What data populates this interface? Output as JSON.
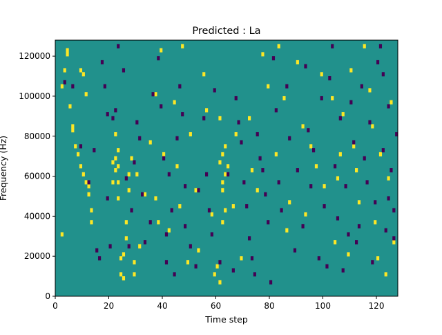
{
  "chart_data": {
    "type": "heatmap",
    "title": "Predicted : La",
    "xlabel": "Time step",
    "ylabel": "Frequency (Hz)",
    "xlim": [
      0,
      128
    ],
    "ylim": [
      0,
      128000
    ],
    "x_ticks": [
      0,
      20,
      40,
      60,
      80,
      100,
      120
    ],
    "y_ticks": [
      0,
      20000,
      40000,
      60000,
      80000,
      100000,
      120000
    ],
    "x_tick_labels": [
      "0",
      "20",
      "40",
      "60",
      "80",
      "100",
      "120"
    ],
    "y_tick_labels": [
      "0",
      "20000",
      "40000",
      "60000",
      "80000",
      "100000",
      "120000"
    ],
    "grid": false,
    "colors": {
      "background": "#21918c",
      "high": "#fde725",
      "low": "#440154"
    },
    "rows": 64,
    "bin_hz": 2000,
    "high_cells": [
      [
        2,
        15
      ],
      [
        2,
        52
      ],
      [
        3,
        56
      ],
      [
        4,
        60
      ],
      [
        4,
        61
      ],
      [
        5,
        47
      ],
      [
        6,
        42
      ],
      [
        6,
        41
      ],
      [
        7,
        37
      ],
      [
        8,
        35
      ],
      [
        9,
        32
      ],
      [
        9,
        56
      ],
      [
        10,
        30
      ],
      [
        10,
        55
      ],
      [
        11,
        28
      ],
      [
        11,
        50
      ],
      [
        12,
        27
      ],
      [
        12,
        25
      ],
      [
        13,
        21
      ],
      [
        13,
        18
      ],
      [
        24,
        5
      ],
      [
        24,
        9
      ],
      [
        25,
        4
      ],
      [
        25,
        10
      ],
      [
        26,
        14
      ],
      [
        26,
        18
      ],
      [
        27,
        26
      ],
      [
        27,
        30
      ],
      [
        28,
        34
      ],
      [
        29,
        5
      ],
      [
        29,
        8
      ],
      [
        23,
        24
      ],
      [
        23,
        28
      ],
      [
        23,
        32
      ],
      [
        23,
        36
      ],
      [
        22,
        31
      ],
      [
        22,
        34
      ],
      [
        21,
        33
      ],
      [
        21,
        28
      ],
      [
        22,
        40
      ],
      [
        30,
        30
      ],
      [
        31,
        12
      ],
      [
        33,
        25
      ],
      [
        35,
        38
      ],
      [
        37,
        24
      ],
      [
        37,
        50
      ],
      [
        38,
        18
      ],
      [
        39,
        61
      ],
      [
        40,
        35
      ],
      [
        42,
        16
      ],
      [
        44,
        48
      ],
      [
        45,
        32
      ],
      [
        46,
        22
      ],
      [
        47,
        62
      ],
      [
        49,
        8
      ],
      [
        50,
        40
      ],
      [
        52,
        26
      ],
      [
        53,
        11
      ],
      [
        55,
        55
      ],
      [
        56,
        46
      ],
      [
        58,
        20
      ],
      [
        59,
        5
      ],
      [
        60,
        7
      ],
      [
        61,
        3
      ],
      [
        61,
        33
      ],
      [
        62,
        18
      ],
      [
        63,
        21
      ],
      [
        62,
        26
      ],
      [
        63,
        30
      ],
      [
        62,
        35
      ],
      [
        63,
        37
      ],
      [
        61,
        44
      ],
      [
        62,
        28
      ],
      [
        64,
        32
      ],
      [
        66,
        22
      ],
      [
        67,
        40
      ],
      [
        69,
        9
      ],
      [
        72,
        44
      ],
      [
        73,
        31
      ],
      [
        75,
        26
      ],
      [
        77,
        60
      ],
      [
        79,
        52
      ],
      [
        82,
        35
      ],
      [
        83,
        62
      ],
      [
        85,
        49
      ],
      [
        86,
        16
      ],
      [
        87,
        23
      ],
      [
        90,
        58
      ],
      [
        92,
        42
      ],
      [
        93,
        20
      ],
      [
        95,
        37
      ],
      [
        97,
        32
      ],
      [
        99,
        55
      ],
      [
        100,
        27
      ],
      [
        103,
        49
      ],
      [
        104,
        13
      ],
      [
        105,
        29
      ],
      [
        106,
        35
      ],
      [
        107,
        45
      ],
      [
        109,
        10
      ],
      [
        110,
        56
      ],
      [
        111,
        37
      ],
      [
        112,
        31
      ],
      [
        113,
        23
      ],
      [
        115,
        62
      ],
      [
        117,
        51
      ],
      [
        118,
        42
      ],
      [
        119,
        18
      ],
      [
        120,
        9
      ],
      [
        121,
        35
      ],
      [
        123,
        5
      ],
      [
        124,
        29
      ],
      [
        125,
        48
      ],
      [
        126,
        13
      ]
    ],
    "low_cells": [
      [
        3,
        53
      ],
      [
        6,
        52
      ],
      [
        9,
        37
      ],
      [
        12,
        28
      ],
      [
        14,
        36
      ],
      [
        15,
        11
      ],
      [
        16,
        9
      ],
      [
        17,
        58
      ],
      [
        18,
        52
      ],
      [
        19,
        45
      ],
      [
        19,
        24
      ],
      [
        20,
        12
      ],
      [
        21,
        44
      ],
      [
        22,
        46
      ],
      [
        23,
        62
      ],
      [
        25,
        56
      ],
      [
        26,
        29
      ],
      [
        27,
        12
      ],
      [
        28,
        21
      ],
      [
        29,
        33
      ],
      [
        30,
        43
      ],
      [
        31,
        39
      ],
      [
        32,
        25
      ],
      [
        33,
        13
      ],
      [
        35,
        18
      ],
      [
        36,
        50
      ],
      [
        38,
        59
      ],
      [
        39,
        47
      ],
      [
        40,
        34
      ],
      [
        41,
        15
      ],
      [
        41,
        8
      ],
      [
        42,
        30
      ],
      [
        43,
        21
      ],
      [
        44,
        5
      ],
      [
        45,
        39
      ],
      [
        46,
        52
      ],
      [
        47,
        45
      ],
      [
        48,
        17
      ],
      [
        48,
        27
      ],
      [
        50,
        12
      ],
      [
        52,
        7
      ],
      [
        53,
        26
      ],
      [
        55,
        44
      ],
      [
        56,
        30
      ],
      [
        57,
        21
      ],
      [
        58,
        15
      ],
      [
        59,
        51
      ],
      [
        61,
        8
      ],
      [
        64,
        30
      ],
      [
        66,
        6
      ],
      [
        67,
        49
      ],
      [
        68,
        43
      ],
      [
        69,
        38
      ],
      [
        70,
        28
      ],
      [
        71,
        22
      ],
      [
        72,
        14
      ],
      [
        73,
        9
      ],
      [
        74,
        5
      ],
      [
        75,
        40
      ],
      [
        76,
        34
      ],
      [
        77,
        31
      ],
      [
        78,
        25
      ],
      [
        79,
        18
      ],
      [
        80,
        3
      ],
      [
        81,
        59
      ],
      [
        82,
        46
      ],
      [
        83,
        28
      ],
      [
        84,
        21
      ],
      [
        86,
        52
      ],
      [
        87,
        39
      ],
      [
        89,
        11
      ],
      [
        90,
        31
      ],
      [
        92,
        17
      ],
      [
        93,
        57
      ],
      [
        94,
        41
      ],
      [
        95,
        27
      ],
      [
        96,
        36
      ],
      [
        98,
        9
      ],
      [
        99,
        49
      ],
      [
        100,
        22
      ],
      [
        101,
        7
      ],
      [
        102,
        54
      ],
      [
        103,
        62
      ],
      [
        104,
        32
      ],
      [
        105,
        19
      ],
      [
        106,
        44
      ],
      [
        107,
        6
      ],
      [
        108,
        27
      ],
      [
        109,
        15
      ],
      [
        110,
        48
      ],
      [
        111,
        38
      ],
      [
        112,
        13
      ],
      [
        114,
        52
      ],
      [
        116,
        28
      ],
      [
        117,
        43
      ],
      [
        118,
        8
      ],
      [
        119,
        23
      ],
      [
        120,
        58
      ],
      [
        122,
        36
      ],
      [
        123,
        16
      ],
      [
        124,
        47
      ],
      [
        125,
        31
      ],
      [
        126,
        21
      ],
      [
        127,
        40
      ],
      [
        126,
        14
      ],
      [
        124,
        24
      ],
      [
        122,
        55
      ],
      [
        121,
        62
      ],
      [
        115,
        34
      ],
      [
        113,
        17
      ]
    ]
  }
}
